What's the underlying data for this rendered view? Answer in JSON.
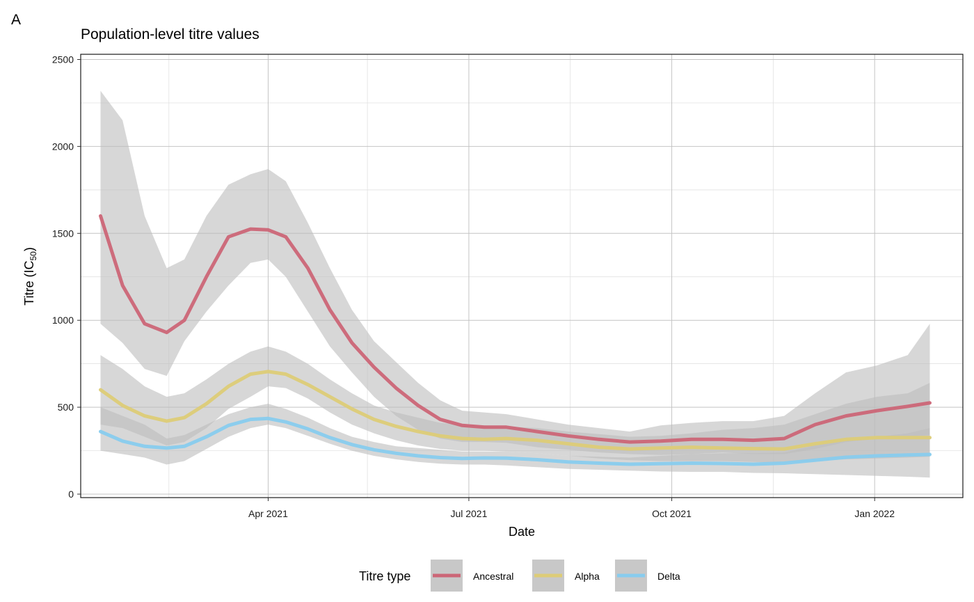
{
  "panel_tag": "A",
  "chart_data": {
    "type": "line",
    "title": "Population-level titre values",
    "xlabel": "Date",
    "ylabel": "Titre (IC",
    "ylabel_subscript": "50",
    "ylabel_close": ")",
    "xlim": [
      "2021-01-06",
      "2022-02-10"
    ],
    "ylim": [
      -20,
      2530
    ],
    "x_ticks": [
      {
        "date": "2021-04-01",
        "label": "Apr 2021"
      },
      {
        "date": "2021-07-01",
        "label": "Jul 2021"
      },
      {
        "date": "2021-10-01",
        "label": "Oct 2021"
      },
      {
        "date": "2022-01-01",
        "label": "Jan 2022"
      }
    ],
    "x_minor_ticks": [
      "2021-02-15",
      "2021-05-16",
      "2021-08-16",
      "2021-11-16"
    ],
    "y_ticks": [
      0,
      500,
      1000,
      1500,
      2000,
      2500
    ],
    "y_minor_ticks": [
      250,
      750,
      1250,
      1750,
      2250
    ],
    "grid": true,
    "legend": {
      "title": "Titre type",
      "placement": "bottom",
      "items": [
        {
          "label": "Ancestral",
          "color": "#cc6677"
        },
        {
          "label": "Alpha",
          "color": "#ddcc77"
        },
        {
          "label": "Delta",
          "color": "#88ccee"
        }
      ]
    },
    "band_color": "#bdbdbd",
    "series": [
      {
        "name": "Ancestral",
        "color": "#cc6677",
        "x": [
          "2021-01-15",
          "2021-01-25",
          "2021-02-04",
          "2021-02-14",
          "2021-02-22",
          "2021-03-04",
          "2021-03-14",
          "2021-03-24",
          "2021-04-01",
          "2021-04-09",
          "2021-04-19",
          "2021-04-29",
          "2021-05-09",
          "2021-05-19",
          "2021-05-29",
          "2021-06-08",
          "2021-06-18",
          "2021-06-28",
          "2021-07-08",
          "2021-07-18",
          "2021-08-01",
          "2021-08-15",
          "2021-08-29",
          "2021-09-12",
          "2021-09-26",
          "2021-10-10",
          "2021-10-24",
          "2021-11-07",
          "2021-11-21",
          "2021-12-05",
          "2021-12-19",
          "2022-01-02",
          "2022-01-16",
          "2022-01-26"
        ],
        "values": [
          1600,
          1200,
          980,
          930,
          1000,
          1250,
          1480,
          1525,
          1520,
          1480,
          1300,
          1060,
          870,
          730,
          610,
          510,
          430,
          395,
          385,
          385,
          360,
          335,
          315,
          300,
          305,
          315,
          315,
          310,
          320,
          400,
          450,
          480,
          505,
          525
        ],
        "lower": [
          980,
          870,
          720,
          680,
          880,
          1050,
          1200,
          1330,
          1350,
          1250,
          1050,
          850,
          700,
          560,
          450,
          370,
          320,
          300,
          300,
          295,
          270,
          255,
          240,
          230,
          225,
          230,
          240,
          230,
          230,
          260,
          300,
          320,
          330,
          340
        ],
        "upper": [
          2320,
          2150,
          1600,
          1300,
          1350,
          1600,
          1780,
          1840,
          1870,
          1800,
          1560,
          1300,
          1060,
          880,
          760,
          640,
          540,
          480,
          470,
          460,
          430,
          400,
          380,
          360,
          395,
          410,
          420,
          420,
          450,
          580,
          700,
          740,
          800,
          980
        ]
      },
      {
        "name": "Alpha",
        "color": "#ddcc77",
        "x": [
          "2021-01-15",
          "2021-01-25",
          "2021-02-04",
          "2021-02-14",
          "2021-02-22",
          "2021-03-04",
          "2021-03-14",
          "2021-03-24",
          "2021-04-01",
          "2021-04-09",
          "2021-04-19",
          "2021-04-29",
          "2021-05-09",
          "2021-05-19",
          "2021-05-29",
          "2021-06-08",
          "2021-06-18",
          "2021-06-28",
          "2021-07-08",
          "2021-07-18",
          "2021-08-01",
          "2021-08-15",
          "2021-08-29",
          "2021-09-12",
          "2021-09-26",
          "2021-10-10",
          "2021-10-24",
          "2021-11-07",
          "2021-11-21",
          "2021-12-05",
          "2021-12-19",
          "2022-01-02",
          "2022-01-16",
          "2022-01-26"
        ],
        "values": [
          600,
          510,
          450,
          420,
          440,
          520,
          620,
          690,
          705,
          690,
          630,
          560,
          490,
          430,
          390,
          360,
          335,
          320,
          315,
          320,
          310,
          290,
          270,
          260,
          265,
          270,
          265,
          262,
          260,
          290,
          315,
          325,
          325,
          325
        ],
        "lower": [
          400,
          380,
          330,
          280,
          300,
          380,
          490,
          560,
          620,
          610,
          550,
          470,
          400,
          350,
          310,
          280,
          260,
          250,
          250,
          245,
          235,
          220,
          205,
          195,
          190,
          190,
          190,
          185,
          180,
          190,
          200,
          205,
          210,
          215
        ],
        "upper": [
          800,
          720,
          620,
          560,
          580,
          660,
          750,
          820,
          850,
          820,
          750,
          660,
          580,
          510,
          470,
          440,
          410,
          400,
          395,
          390,
          380,
          360,
          345,
          330,
          335,
          350,
          370,
          380,
          400,
          460,
          520,
          560,
          580,
          640
        ]
      },
      {
        "name": "Delta",
        "color": "#88ccee",
        "x": [
          "2021-01-15",
          "2021-01-25",
          "2021-02-04",
          "2021-02-14",
          "2021-02-22",
          "2021-03-04",
          "2021-03-14",
          "2021-03-24",
          "2021-04-01",
          "2021-04-09",
          "2021-04-19",
          "2021-04-29",
          "2021-05-09",
          "2021-05-19",
          "2021-05-29",
          "2021-06-08",
          "2021-06-18",
          "2021-06-28",
          "2021-07-08",
          "2021-07-18",
          "2021-08-01",
          "2021-08-15",
          "2021-08-29",
          "2021-09-12",
          "2021-09-26",
          "2021-10-10",
          "2021-10-24",
          "2021-11-07",
          "2021-11-21",
          "2021-12-05",
          "2021-12-19",
          "2022-01-02",
          "2022-01-16",
          "2022-01-26"
        ],
        "values": [
          360,
          305,
          275,
          265,
          275,
          330,
          395,
          430,
          435,
          415,
          375,
          325,
          285,
          255,
          235,
          220,
          210,
          205,
          208,
          207,
          198,
          185,
          178,
          172,
          175,
          178,
          176,
          172,
          178,
          195,
          212,
          220,
          225,
          228
        ],
        "lower": [
          250,
          230,
          210,
          170,
          190,
          260,
          330,
          380,
          400,
          380,
          335,
          290,
          250,
          220,
          200,
          185,
          175,
          170,
          170,
          165,
          155,
          145,
          140,
          135,
          130,
          128,
          128,
          122,
          120,
          115,
          110,
          105,
          100,
          95
        ],
        "upper": [
          500,
          450,
          400,
          320,
          340,
          400,
          460,
          500,
          520,
          490,
          440,
          380,
          330,
          300,
          275,
          265,
          255,
          245,
          245,
          245,
          235,
          220,
          215,
          210,
          220,
          230,
          235,
          235,
          240,
          280,
          310,
          330,
          350,
          380
        ]
      }
    ]
  }
}
